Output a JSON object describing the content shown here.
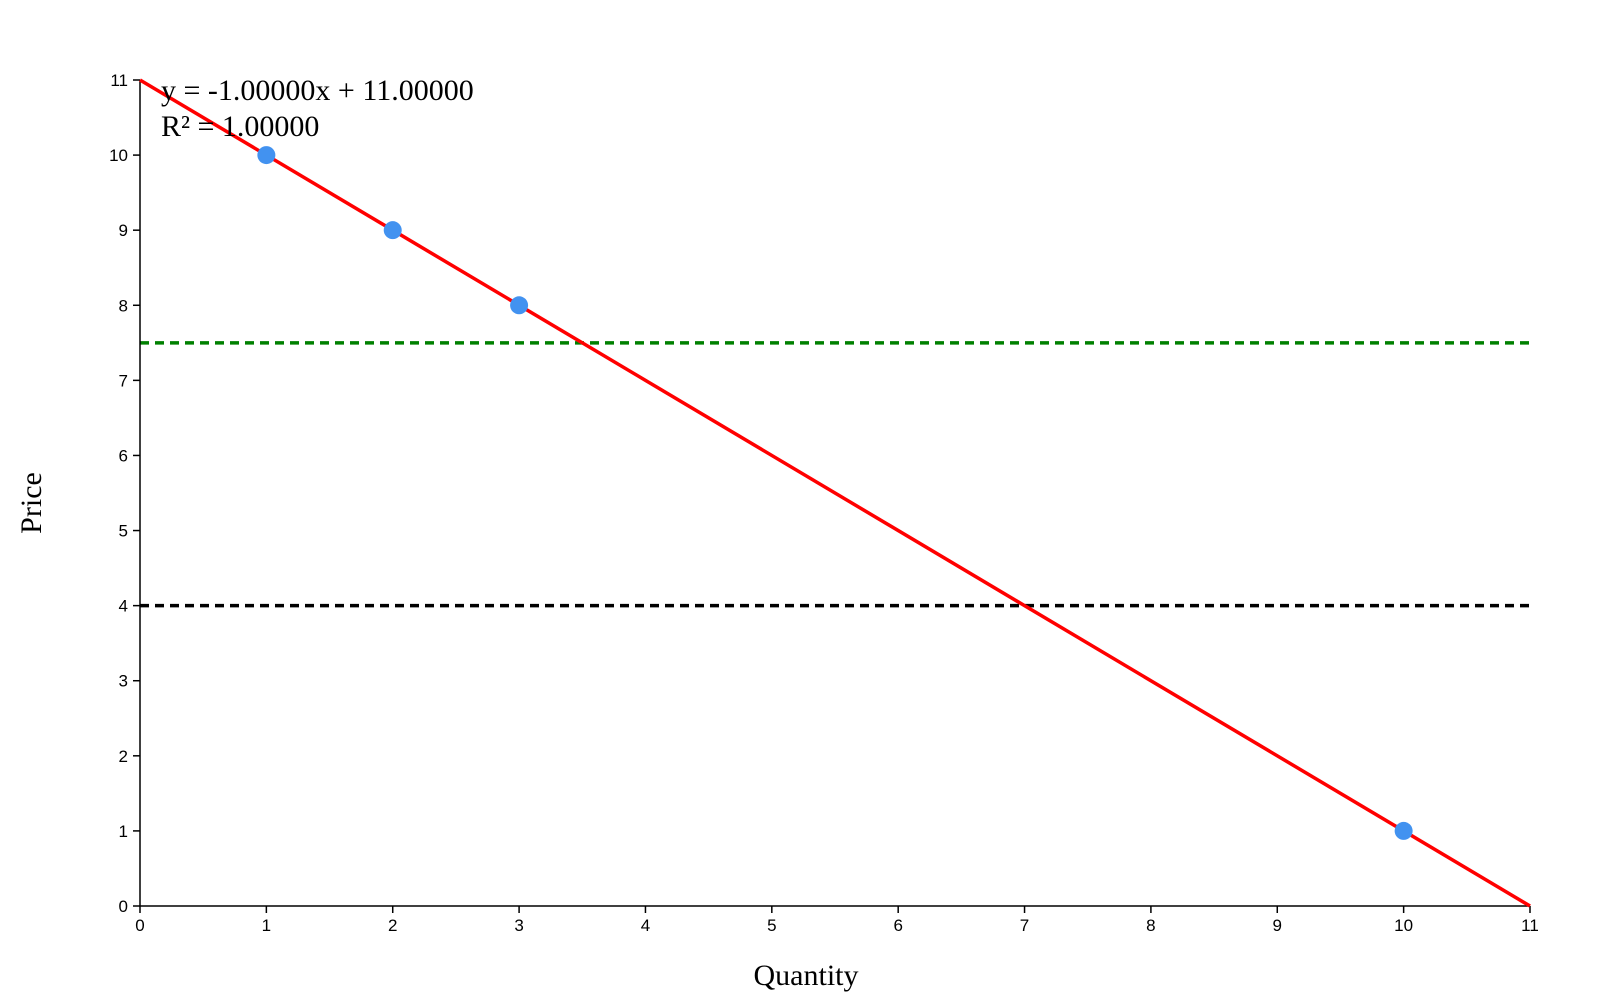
{
  "chart_data": {
    "type": "scatter",
    "xlabel": "Quantity",
    "ylabel": "Price",
    "xlim": [
      0,
      11
    ],
    "ylim": [
      0,
      11
    ],
    "x_ticks": [
      0,
      1,
      2,
      3,
      4,
      5,
      6,
      7,
      8,
      9,
      10,
      11
    ],
    "y_ticks": [
      0,
      1,
      2,
      3,
      4,
      5,
      6,
      7,
      8,
      9,
      10,
      11
    ],
    "grid": false,
    "points": [
      {
        "x": 1,
        "y": 10
      },
      {
        "x": 2,
        "y": 9
      },
      {
        "x": 3,
        "y": 8
      },
      {
        "x": 10,
        "y": 1
      }
    ],
    "point_color": "#4292f0",
    "regression": {
      "slope": -1.0,
      "intercept": 11.0,
      "color": "#ff0000",
      "equation_text": "y = -1.00000x + 11.00000",
      "r2_text": "R² = 1.00000"
    },
    "reference_lines": [
      {
        "y": 7.5,
        "color": "#008000",
        "style": "dashed"
      },
      {
        "y": 4,
        "color": "#000000",
        "style": "dashed"
      }
    ]
  }
}
